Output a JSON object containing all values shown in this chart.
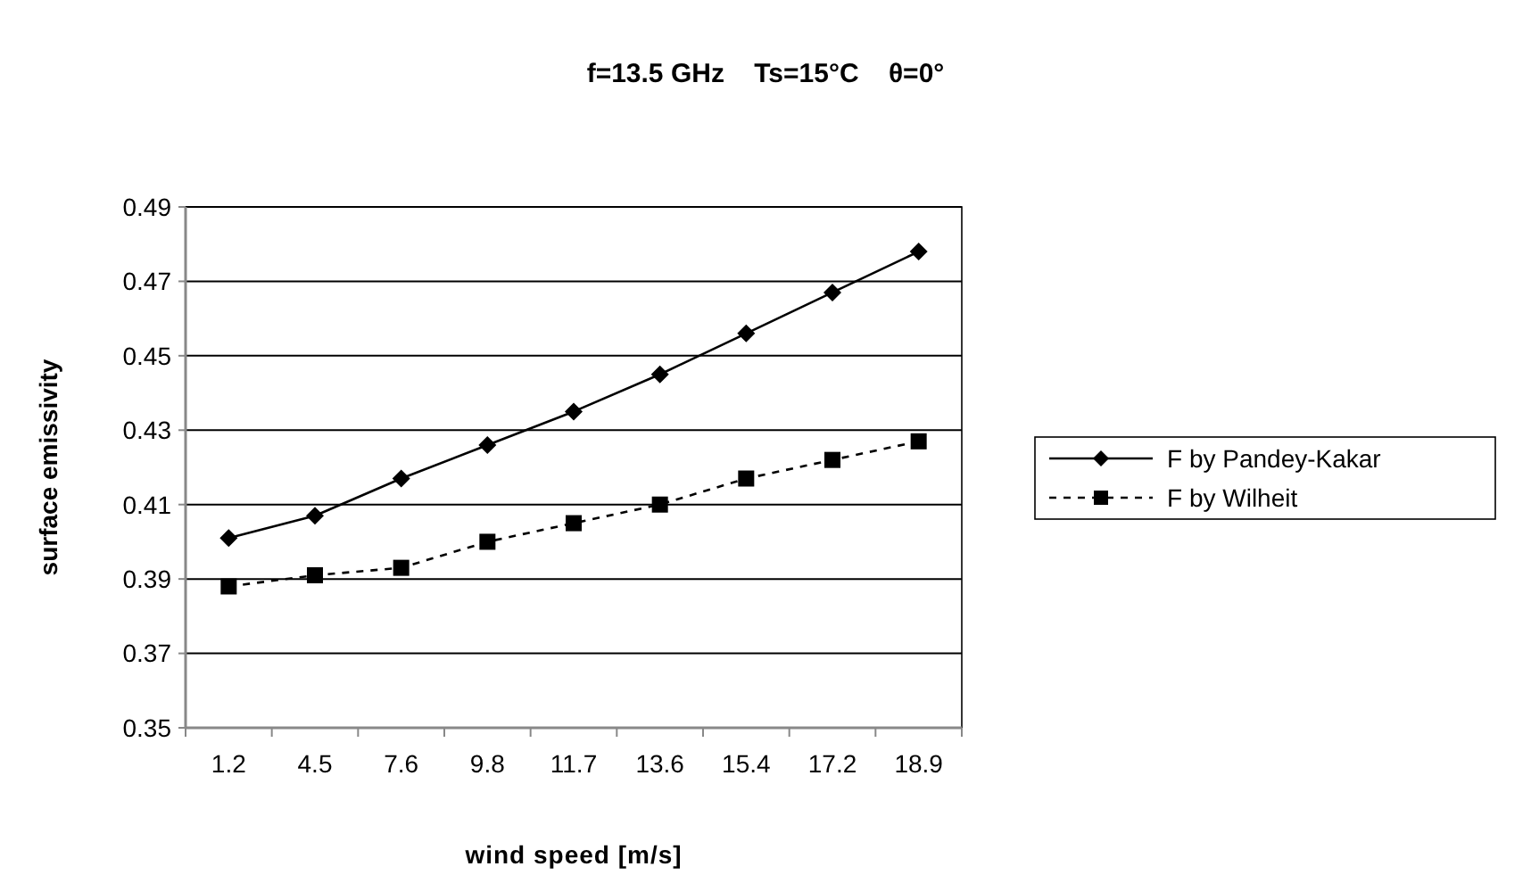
{
  "chart_data": {
    "type": "line",
    "title": "f=13.5 GHz    Ts=15°C    θ=0°",
    "xlabel": "wind speed [m/s]",
    "ylabel": "surface emissivity",
    "categories": [
      "1.2",
      "4.5",
      "7.6",
      "9.8",
      "11.7",
      "13.6",
      "15.4",
      "17.2",
      "18.9"
    ],
    "series": [
      {
        "name": "F by Pandey-Kakar",
        "color": "#000000",
        "marker": "diamond",
        "line_style": "solid",
        "values": [
          0.401,
          0.407,
          0.417,
          0.426,
          0.435,
          0.445,
          0.456,
          0.467,
          0.478
        ]
      },
      {
        "name": "F by Wilheit",
        "color": "#000000",
        "marker": "square",
        "line_style": "dashed",
        "values": [
          0.388,
          0.391,
          0.393,
          0.4,
          0.405,
          0.41,
          0.417,
          0.422,
          0.427
        ]
      }
    ],
    "ylim": [
      0.35,
      0.49
    ],
    "yticks": [
      0.35,
      0.37,
      0.39,
      0.41,
      0.43,
      0.45,
      0.47,
      0.49
    ],
    "grid": "y",
    "legend": "right"
  }
}
